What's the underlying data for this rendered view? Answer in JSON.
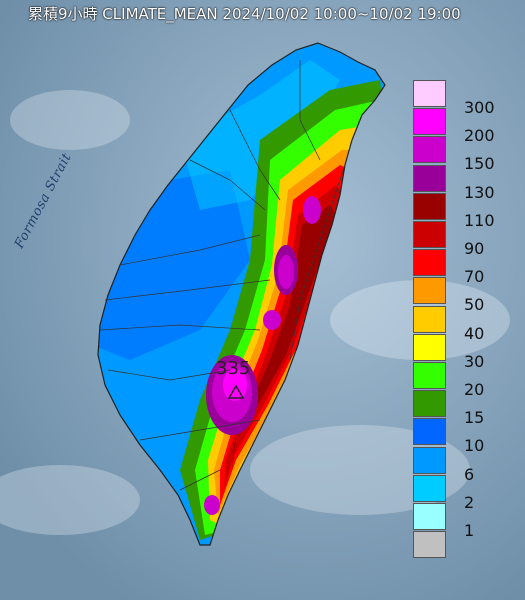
{
  "title": "累積9小時 CLIMATE_MEAN 2024/10/02 10:00~10/02 19:00",
  "strait_label": "Formosa Strait",
  "peak": {
    "value": "335"
  },
  "legend": [
    {
      "label": "300",
      "color": "#ffccff"
    },
    {
      "label": "200",
      "color": "#ff00ff"
    },
    {
      "label": "150",
      "color": "#cc00cc"
    },
    {
      "label": "130",
      "color": "#990099"
    },
    {
      "label": "110",
      "color": "#990000"
    },
    {
      "label": "90",
      "color": "#cc0000"
    },
    {
      "label": "70",
      "color": "#ff0000"
    },
    {
      "label": "50",
      "color": "#ff9900"
    },
    {
      "label": "40",
      "color": "#ffcc00"
    },
    {
      "label": "30",
      "color": "#ffff00"
    },
    {
      "label": "20",
      "color": "#33ff00"
    },
    {
      "label": "15",
      "color": "#339900"
    },
    {
      "label": "10",
      "color": "#0066ff"
    },
    {
      "label": "6",
      "color": "#0099ff"
    },
    {
      "label": "2",
      "color": "#00ccff"
    },
    {
      "label": "1",
      "color": "#99ffff"
    },
    {
      "label": "",
      "color": "#c0c0c0"
    }
  ]
}
